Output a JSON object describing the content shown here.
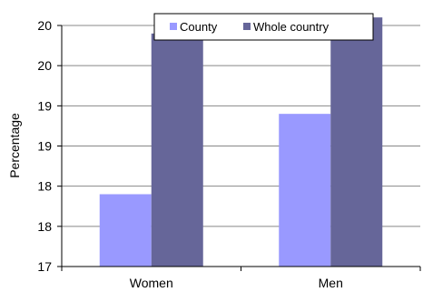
{
  "chart_data": {
    "type": "bar",
    "categories": [
      "Women",
      "Men"
    ],
    "series": [
      {
        "name": "County",
        "values": [
          17.9,
          18.9
        ],
        "color": "#9999ff"
      },
      {
        "name": "Whole country",
        "values": [
          19.9,
          20.1
        ],
        "color": "#666699"
      }
    ],
    "yticks": [
      "17",
      "18",
      "18",
      "19",
      "19",
      "20",
      "20"
    ],
    "ylim": [
      17.0,
      20.0
    ],
    "ylabel": "Percentage",
    "xlabel": "",
    "grid": true,
    "legend_position": "top-right"
  }
}
